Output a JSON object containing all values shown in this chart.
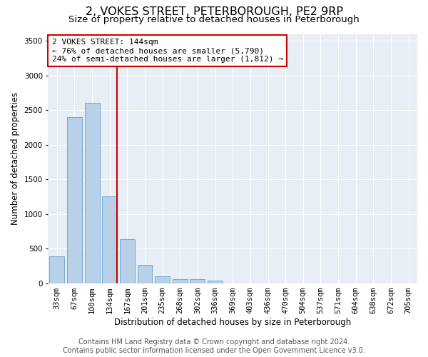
{
  "title": "2, VOKES STREET, PETERBOROUGH, PE2 9RP",
  "subtitle": "Size of property relative to detached houses in Peterborough",
  "xlabel": "Distribution of detached houses by size in Peterborough",
  "ylabel": "Number of detached properties",
  "categories": [
    "33sqm",
    "67sqm",
    "100sqm",
    "134sqm",
    "167sqm",
    "201sqm",
    "235sqm",
    "268sqm",
    "302sqm",
    "336sqm",
    "369sqm",
    "403sqm",
    "436sqm",
    "470sqm",
    "504sqm",
    "537sqm",
    "571sqm",
    "604sqm",
    "638sqm",
    "672sqm",
    "705sqm"
  ],
  "values": [
    390,
    2400,
    2600,
    1250,
    640,
    260,
    100,
    60,
    60,
    40,
    0,
    0,
    0,
    0,
    0,
    0,
    0,
    0,
    0,
    0,
    0
  ],
  "bar_color": "#b8d0e8",
  "bar_edge_color": "#6aaad4",
  "vline_color": "#cc0000",
  "annotation_text": "2 VOKES STREET: 144sqm\n← 76% of detached houses are smaller (5,790)\n24% of semi-detached houses are larger (1,812) →",
  "annotation_box_color": "#ffffff",
  "annotation_box_edge_color": "#cc0000",
  "ylim": [
    0,
    3600
  ],
  "yticks": [
    0,
    500,
    1000,
    1500,
    2000,
    2500,
    3000,
    3500
  ],
  "footer_line1": "Contains HM Land Registry data © Crown copyright and database right 2024.",
  "footer_line2": "Contains public sector information licensed under the Open Government Licence v3.0.",
  "plot_background_color": "#e8eef5",
  "grid_color": "#ffffff",
  "title_fontsize": 11.5,
  "subtitle_fontsize": 9.5,
  "axis_label_fontsize": 8.5,
  "tick_fontsize": 7.5,
  "annotation_fontsize": 8,
  "footer_fontsize": 7
}
